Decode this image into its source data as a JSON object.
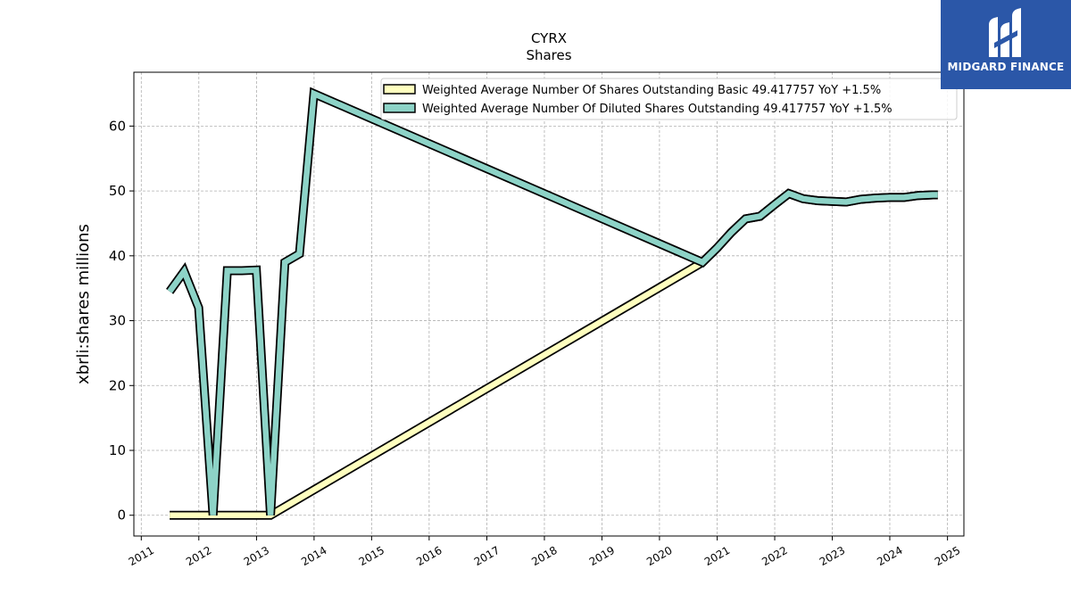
{
  "chart_data": {
    "type": "line",
    "title": "CYRX",
    "subtitle": "Shares",
    "ylabel": "xbrli:shares millions",
    "xlabel": "",
    "xlim": [
      "2010-11-15",
      "2025-04-15"
    ],
    "ylim": [
      -3.2,
      68.3
    ],
    "x_ticks": [
      "2011",
      "2012",
      "2013",
      "2014",
      "2015",
      "2016",
      "2017",
      "2018",
      "2019",
      "2020",
      "2021",
      "2022",
      "2023",
      "2024",
      "2025"
    ],
    "y_ticks": [
      0,
      10,
      20,
      30,
      40,
      50,
      60
    ],
    "grid": true,
    "legend_position": "top-right",
    "series": [
      {
        "name": "Weighted Average Number Of Shares Outstanding Basic  49.417757 YoY +1.5%",
        "color": "#ffffbf",
        "points": [
          [
            "2011-06-30",
            0.0
          ],
          [
            "2011-09-30",
            0.0
          ],
          [
            "2011-12-31",
            0.0
          ],
          [
            "2012-03-31",
            0.0
          ],
          [
            "2012-06-30",
            0.0
          ],
          [
            "2012-09-30",
            0.0
          ],
          [
            "2012-12-31",
            0.0
          ],
          [
            "2013-03-31",
            0.0
          ],
          [
            "2020-09-30",
            39.0
          ],
          [
            "2020-12-31",
            41.2
          ],
          [
            "2021-03-31",
            43.6
          ],
          [
            "2021-06-30",
            45.7
          ],
          [
            "2021-09-30",
            46.1
          ],
          [
            "2021-12-31",
            47.9
          ],
          [
            "2022-03-31",
            49.6
          ],
          [
            "2022-06-30",
            48.8
          ],
          [
            "2022-09-30",
            48.5
          ],
          [
            "2022-12-31",
            48.4
          ],
          [
            "2023-03-31",
            48.3
          ],
          [
            "2023-06-30",
            48.7
          ],
          [
            "2023-09-30",
            48.9
          ],
          [
            "2023-12-31",
            49.0
          ],
          [
            "2024-03-31",
            49.0
          ],
          [
            "2024-06-30",
            49.3
          ],
          [
            "2024-09-30",
            49.4
          ],
          [
            "2024-10-31",
            49.4
          ]
        ]
      },
      {
        "name": "Weighted Average Number Of Diluted Shares Outstanding  49.417757 YoY +1.5%",
        "color": "#8dd3c7",
        "points": [
          [
            "2011-06-30",
            34.5
          ],
          [
            "2011-09-30",
            37.6
          ],
          [
            "2011-12-31",
            32.0
          ],
          [
            "2012-03-31",
            0.0
          ],
          [
            "2012-06-30",
            37.7
          ],
          [
            "2012-09-30",
            37.7
          ],
          [
            "2012-12-31",
            37.8
          ],
          [
            "2013-03-31",
            0.0
          ],
          [
            "2013-06-30",
            39.0
          ],
          [
            "2013-09-30",
            40.3
          ],
          [
            "2013-12-31",
            65.0
          ],
          [
            "2020-09-30",
            39.0
          ],
          [
            "2020-12-31",
            41.2
          ],
          [
            "2021-03-31",
            43.6
          ],
          [
            "2021-06-30",
            45.7
          ],
          [
            "2021-09-30",
            46.1
          ],
          [
            "2021-12-31",
            47.9
          ],
          [
            "2022-03-31",
            49.6
          ],
          [
            "2022-06-30",
            48.8
          ],
          [
            "2022-09-30",
            48.5
          ],
          [
            "2022-12-31",
            48.4
          ],
          [
            "2023-03-31",
            48.3
          ],
          [
            "2023-06-30",
            48.7
          ],
          [
            "2023-09-30",
            48.9
          ],
          [
            "2023-12-31",
            49.0
          ],
          [
            "2024-03-31",
            49.0
          ],
          [
            "2024-06-30",
            49.3
          ],
          [
            "2024-09-30",
            49.4
          ],
          [
            "2024-10-31",
            49.4
          ]
        ]
      }
    ]
  },
  "brand": {
    "name": "MIDGARD FINANCE",
    "background": "#2b57a8",
    "icon": "midgard-logo-icon"
  }
}
